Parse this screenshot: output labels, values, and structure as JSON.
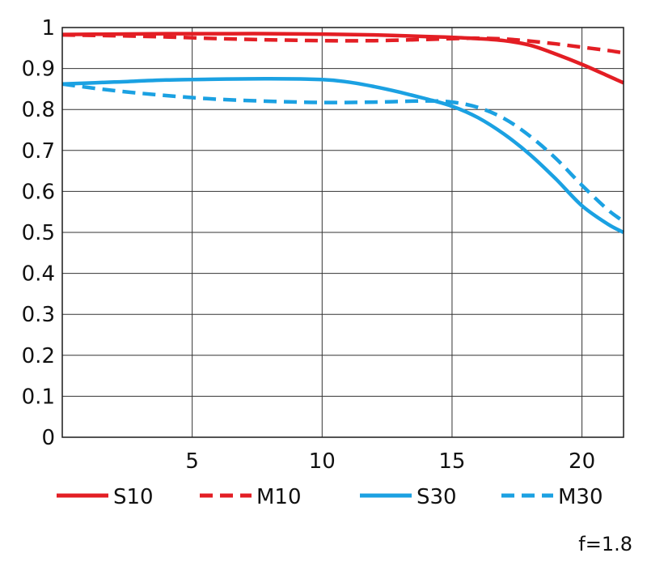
{
  "chart_data": {
    "type": "line",
    "xlim": [
      0,
      21.6
    ],
    "ylim": [
      0,
      1
    ],
    "x_ticks": [
      5,
      10,
      15,
      20
    ],
    "y_ticks": [
      0,
      0.1,
      0.2,
      0.3,
      0.4,
      0.5,
      0.6,
      0.7,
      0.8,
      0.9,
      1
    ],
    "y_tick_labels": [
      "0",
      "0.1",
      "0.2",
      "0.3",
      "0.4",
      "0.5",
      "0.6",
      "0.7",
      "0.8",
      "0.9",
      "1"
    ],
    "x_tick_labels": [
      "5",
      "10",
      "15",
      "20"
    ],
    "grid": true,
    "legend_position": "bottom",
    "annotation": "f=1.8",
    "series": [
      {
        "name": "S10",
        "color": "#e31e24",
        "dash": "solid",
        "x": [
          0,
          2,
          4,
          6,
          8,
          10,
          12,
          14,
          15,
          16,
          17,
          18,
          19,
          20,
          21,
          21.6
        ],
        "y": [
          0.983,
          0.984,
          0.985,
          0.985,
          0.985,
          0.984,
          0.982,
          0.978,
          0.976,
          0.973,
          0.968,
          0.957,
          0.935,
          0.91,
          0.882,
          0.865
        ]
      },
      {
        "name": "M10",
        "color": "#e31e24",
        "dash": "dashed",
        "x": [
          0,
          2,
          4,
          6,
          8,
          10,
          12,
          14,
          15,
          16,
          17,
          18,
          19,
          20,
          21,
          21.6
        ],
        "y": [
          0.982,
          0.98,
          0.977,
          0.973,
          0.97,
          0.968,
          0.968,
          0.971,
          0.973,
          0.974,
          0.972,
          0.967,
          0.96,
          0.952,
          0.944,
          0.938
        ]
      },
      {
        "name": "S30",
        "color": "#1ba1e2",
        "dash": "solid",
        "x": [
          0,
          2,
          4,
          6,
          8,
          10,
          11,
          12,
          13,
          14,
          15,
          16,
          17,
          18,
          19,
          20,
          21,
          21.6
        ],
        "y": [
          0.862,
          0.867,
          0.872,
          0.874,
          0.875,
          0.873,
          0.867,
          0.856,
          0.842,
          0.826,
          0.808,
          0.78,
          0.74,
          0.69,
          0.63,
          0.565,
          0.52,
          0.5
        ]
      },
      {
        "name": "M30",
        "color": "#1ba1e2",
        "dash": "dashed",
        "x": [
          0,
          2,
          4,
          6,
          8,
          10,
          12,
          14,
          15,
          16,
          17,
          18,
          19,
          20,
          21,
          21.6
        ],
        "y": [
          0.862,
          0.846,
          0.834,
          0.825,
          0.82,
          0.817,
          0.818,
          0.821,
          0.818,
          0.805,
          0.778,
          0.735,
          0.68,
          0.615,
          0.555,
          0.527
        ]
      }
    ]
  }
}
